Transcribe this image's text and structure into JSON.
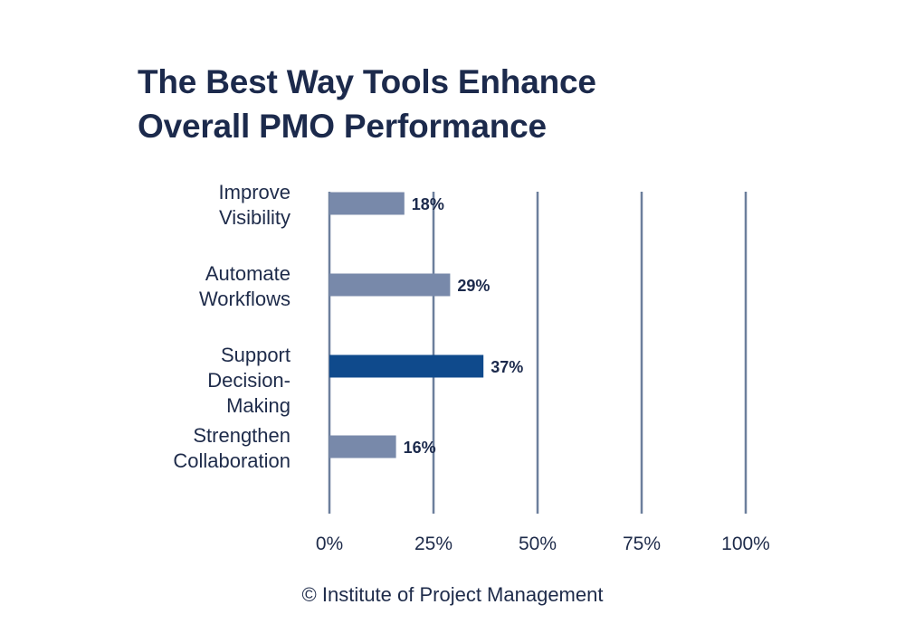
{
  "title_lines": [
    "The Best Way Tools Enhance",
    "Overall PMO Performance"
  ],
  "footer": "© Institute of Project Management",
  "colors": {
    "bar": "#7889aa",
    "highlight": "#0f4a8c",
    "gridline": "#6c7f9c",
    "text": "#1c2a4c"
  },
  "chart_data": {
    "type": "bar",
    "orientation": "horizontal",
    "title": "The Best Way Tools Enhance Overall PMO Performance",
    "categories": [
      [
        "Improve",
        "Visibility"
      ],
      [
        "Automate",
        "Workflows"
      ],
      [
        "Support",
        "Decision-",
        "Making"
      ],
      [
        "Strengthen",
        "Collaboration"
      ]
    ],
    "values": [
      18,
      29,
      37,
      16
    ],
    "value_labels": [
      "18%",
      "29%",
      "37%",
      "16%"
    ],
    "highlight_index": 2,
    "xlim": [
      0,
      100
    ],
    "xticks": [
      0,
      25,
      50,
      75,
      100
    ],
    "xtick_labels": [
      "0%",
      "25%",
      "50%",
      "75%",
      "100%"
    ],
    "grid": true
  }
}
